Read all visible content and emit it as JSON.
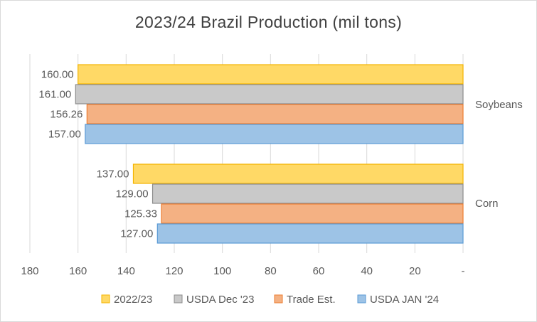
{
  "chart_data": {
    "type": "bar",
    "orientation": "horizontal",
    "title": "2023/24 Brazil Production  (mil tons)",
    "categories": [
      "Soybeans",
      "Corn"
    ],
    "series": [
      {
        "name": "2022/23",
        "values": [
          160.0,
          137.0
        ],
        "labels": [
          "160.00",
          "137.00"
        ],
        "color": "#ffd966",
        "stroke": "#f4b400"
      },
      {
        "name": "USDA Dec '23",
        "values": [
          161.0,
          129.0
        ],
        "labels": [
          "161.00",
          "129.00"
        ],
        "color": "#c9c9c9",
        "stroke": "#8c8c8c"
      },
      {
        "name": "Trade Est.",
        "values": [
          156.26,
          125.33
        ],
        "labels": [
          "156.26",
          "125.33"
        ],
        "color": "#f4b183",
        "stroke": "#ed7d31"
      },
      {
        "name": "USDA JAN '24",
        "values": [
          157.0,
          127.0
        ],
        "labels": [
          "157.00",
          "127.00"
        ],
        "color": "#9dc3e6",
        "stroke": "#5b9bd5"
      }
    ],
    "x_axis": {
      "reversed": true,
      "xlim": [
        0,
        180
      ],
      "ticks": [
        180,
        160,
        140,
        120,
        100,
        80,
        60,
        40,
        20,
        0
      ],
      "tick_labels": [
        "180",
        "160",
        "140",
        "120",
        "100",
        "80",
        "60",
        "40",
        "20",
        "-"
      ]
    },
    "category_axis_position": "right",
    "grid": "vertical",
    "legend_position": "bottom"
  }
}
